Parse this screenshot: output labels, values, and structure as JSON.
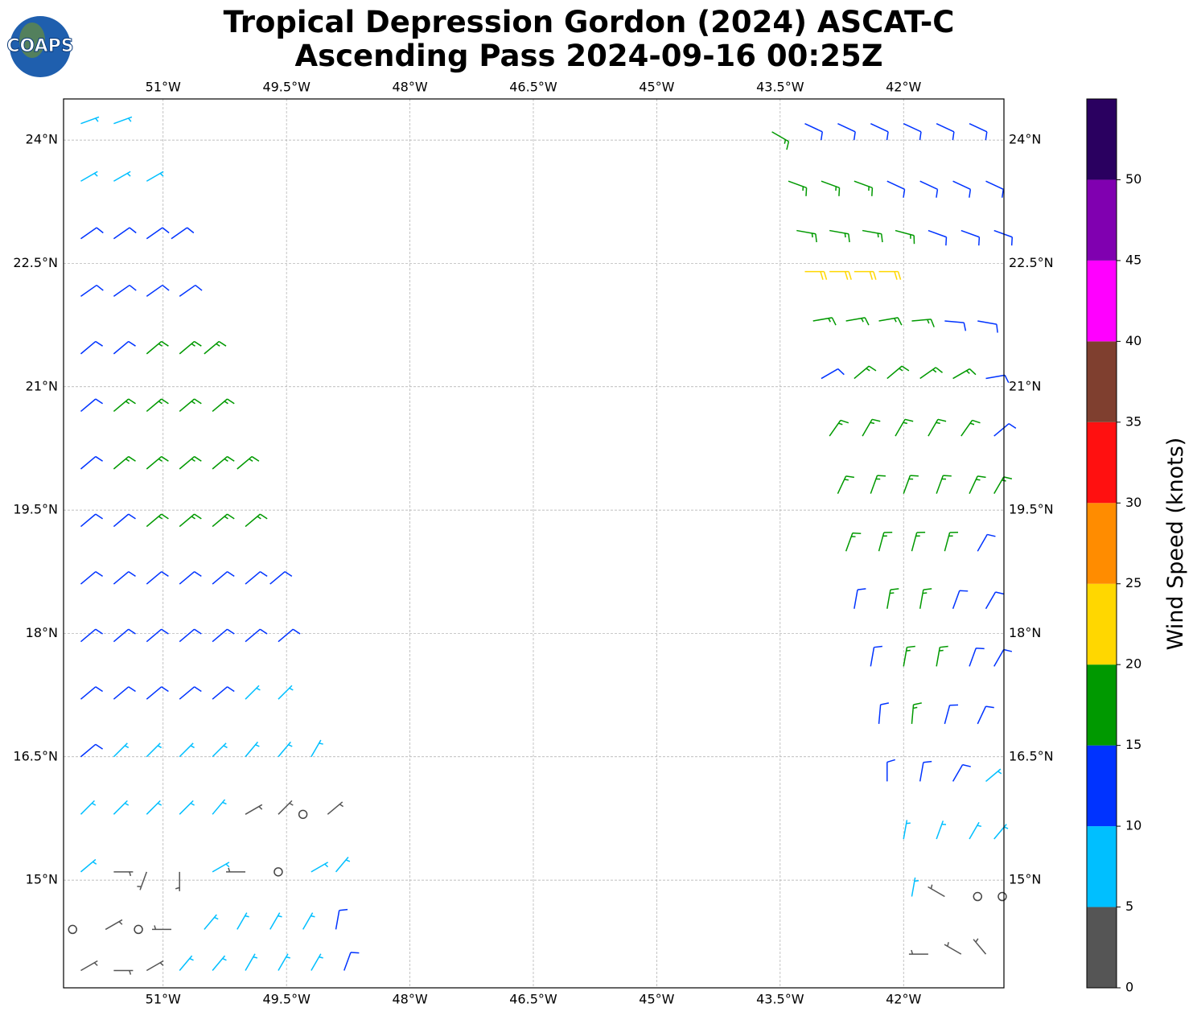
{
  "chart_data": {
    "type": "barbs",
    "logo_text": "COAPS",
    "title": "Tropical Depression Gordon (2024) ASCAT-C",
    "subtitle": "Ascending Pass 2024-09-16 00:25Z",
    "xlim": [
      -52.21,
      -40.78
    ],
    "ylim": [
      13.69,
      24.5
    ],
    "xticks": [
      {
        "value": -51,
        "label": "51°W"
      },
      {
        "value": -49.5,
        "label": "49.5°W"
      },
      {
        "value": -48,
        "label": "48°W"
      },
      {
        "value": -46.5,
        "label": "46.5°W"
      },
      {
        "value": -45,
        "label": "45°W"
      },
      {
        "value": -43.5,
        "label": "43.5°W"
      },
      {
        "value": -42,
        "label": "42°W"
      }
    ],
    "yticks": [
      {
        "value": 15,
        "label": "15°N"
      },
      {
        "value": 16.5,
        "label": "16.5°N"
      },
      {
        "value": 18,
        "label": "18°N"
      },
      {
        "value": 19.5,
        "label": "19.5°N"
      },
      {
        "value": 21,
        "label": "21°N"
      },
      {
        "value": 22.5,
        "label": "22.5°N"
      },
      {
        "value": 24,
        "label": "24°N"
      }
    ],
    "grid": true,
    "colorbar": {
      "label": "Wind Speed (knots)",
      "bounds": [
        0,
        5,
        10,
        15,
        20,
        25,
        30,
        35,
        40,
        45,
        50,
        55
      ],
      "colors": [
        "#555555",
        "#00bfff",
        "#0033ff",
        "#009900",
        "#ffd700",
        "#ff8c00",
        "#ff1010",
        "#7f3f2f",
        "#ff00ff",
        "#8000b0",
        "#2a0060"
      ],
      "ticks": [
        0,
        5,
        10,
        15,
        20,
        25,
        30,
        35,
        40,
        45,
        50
      ]
    },
    "barbs": [
      [
        -52.0,
        24.2,
        7,
        70
      ],
      [
        -51.6,
        24.2,
        7,
        70
      ],
      [
        -52.0,
        23.5,
        7,
        60
      ],
      [
        -51.6,
        23.5,
        7,
        60
      ],
      [
        -51.2,
        23.5,
        7,
        60
      ],
      [
        -52.0,
        22.8,
        12,
        55
      ],
      [
        -51.6,
        22.8,
        12,
        55
      ],
      [
        -51.2,
        22.8,
        12,
        55
      ],
      [
        -50.9,
        22.8,
        12,
        55
      ],
      [
        -52.0,
        22.1,
        12,
        55
      ],
      [
        -51.6,
        22.1,
        12,
        55
      ],
      [
        -51.2,
        22.1,
        12,
        55
      ],
      [
        -50.8,
        22.1,
        12,
        55
      ],
      [
        -52.0,
        21.4,
        12,
        50
      ],
      [
        -51.6,
        21.4,
        12,
        50
      ],
      [
        -51.2,
        21.4,
        17,
        50
      ],
      [
        -50.8,
        21.4,
        17,
        50
      ],
      [
        -50.5,
        21.4,
        17,
        50
      ],
      [
        -52.0,
        20.7,
        12,
        50
      ],
      [
        -51.6,
        20.7,
        17,
        50
      ],
      [
        -51.2,
        20.7,
        17,
        50
      ],
      [
        -50.8,
        20.7,
        17,
        50
      ],
      [
        -50.4,
        20.7,
        17,
        50
      ],
      [
        -52.0,
        20.0,
        12,
        50
      ],
      [
        -51.6,
        20.0,
        17,
        50
      ],
      [
        -51.2,
        20.0,
        17,
        50
      ],
      [
        -50.8,
        20.0,
        17,
        50
      ],
      [
        -50.4,
        20.0,
        17,
        50
      ],
      [
        -50.1,
        20.0,
        17,
        50
      ],
      [
        -52.0,
        19.3,
        12,
        50
      ],
      [
        -51.6,
        19.3,
        12,
        50
      ],
      [
        -51.2,
        19.3,
        17,
        50
      ],
      [
        -50.8,
        19.3,
        17,
        50
      ],
      [
        -50.4,
        19.3,
        17,
        50
      ],
      [
        -50.0,
        19.3,
        17,
        50
      ],
      [
        -52.0,
        18.6,
        12,
        50
      ],
      [
        -51.6,
        18.6,
        12,
        50
      ],
      [
        -51.2,
        18.6,
        12,
        50
      ],
      [
        -50.8,
        18.6,
        12,
        50
      ],
      [
        -50.4,
        18.6,
        12,
        50
      ],
      [
        -50.0,
        18.6,
        12,
        50
      ],
      [
        -49.7,
        18.6,
        12,
        50
      ],
      [
        -52.0,
        17.9,
        12,
        50
      ],
      [
        -51.6,
        17.9,
        12,
        50
      ],
      [
        -51.2,
        17.9,
        12,
        50
      ],
      [
        -50.8,
        17.9,
        12,
        50
      ],
      [
        -50.4,
        17.9,
        12,
        50
      ],
      [
        -50.0,
        17.9,
        12,
        50
      ],
      [
        -49.6,
        17.9,
        12,
        50
      ],
      [
        -52.0,
        17.2,
        12,
        50
      ],
      [
        -51.6,
        17.2,
        12,
        50
      ],
      [
        -51.2,
        17.2,
        12,
        50
      ],
      [
        -50.8,
        17.2,
        12,
        50
      ],
      [
        -50.4,
        17.2,
        12,
        50
      ],
      [
        -50.0,
        17.2,
        7,
        45
      ],
      [
        -49.6,
        17.2,
        7,
        45
      ],
      [
        -52.0,
        16.5,
        12,
        50
      ],
      [
        -51.6,
        16.5,
        7,
        45
      ],
      [
        -51.2,
        16.5,
        7,
        45
      ],
      [
        -50.8,
        16.5,
        7,
        45
      ],
      [
        -50.4,
        16.5,
        7,
        45
      ],
      [
        -50.0,
        16.5,
        7,
        40
      ],
      [
        -49.6,
        16.5,
        7,
        40
      ],
      [
        -49.2,
        16.5,
        7,
        30
      ],
      [
        -52.0,
        15.8,
        7,
        45
      ],
      [
        -51.6,
        15.8,
        7,
        45
      ],
      [
        -51.2,
        15.8,
        7,
        45
      ],
      [
        -50.8,
        15.8,
        7,
        45
      ],
      [
        -50.4,
        15.8,
        7,
        40
      ],
      [
        -50.0,
        15.8,
        3,
        60
      ],
      [
        -49.6,
        15.8,
        3,
        45
      ],
      [
        -49.3,
        15.8,
        1,
        0
      ],
      [
        -49.0,
        15.8,
        3,
        50
      ],
      [
        -52.0,
        15.1,
        7,
        50
      ],
      [
        -51.6,
        15.1,
        3,
        90
      ],
      [
        -51.2,
        15.1,
        3,
        200
      ],
      [
        -50.8,
        15.1,
        3,
        180
      ],
      [
        -50.4,
        15.1,
        7,
        60
      ],
      [
        -50.0,
        15.1,
        3,
        270
      ],
      [
        -49.6,
        15.1,
        1,
        0
      ],
      [
        -49.2,
        15.1,
        7,
        60
      ],
      [
        -48.9,
        15.1,
        7,
        40
      ],
      [
        -52.1,
        14.4,
        1,
        0
      ],
      [
        -51.7,
        14.4,
        3,
        60
      ],
      [
        -51.3,
        14.4,
        1,
        0
      ],
      [
        -50.9,
        14.4,
        3,
        270
      ],
      [
        -50.5,
        14.4,
        7,
        40
      ],
      [
        -50.1,
        14.4,
        7,
        30
      ],
      [
        -49.7,
        14.4,
        7,
        30
      ],
      [
        -49.3,
        14.4,
        7,
        30
      ],
      [
        -48.9,
        14.4,
        12,
        10
      ],
      [
        -52.0,
        13.9,
        3,
        60
      ],
      [
        -51.6,
        13.9,
        3,
        90
      ],
      [
        -51.2,
        13.9,
        3,
        60
      ],
      [
        -50.8,
        13.9,
        7,
        40
      ],
      [
        -50.4,
        13.9,
        7,
        40
      ],
      [
        -50.0,
        13.9,
        7,
        30
      ],
      [
        -49.6,
        13.9,
        7,
        30
      ],
      [
        -49.2,
        13.9,
        7,
        30
      ],
      [
        -48.8,
        13.9,
        12,
        20
      ],
      [
        -43.6,
        24.1,
        17,
        120
      ],
      [
        -43.2,
        24.2,
        12,
        115
      ],
      [
        -42.8,
        24.2,
        12,
        115
      ],
      [
        -42.4,
        24.2,
        12,
        115
      ],
      [
        -42.0,
        24.2,
        12,
        115
      ],
      [
        -41.6,
        24.2,
        12,
        115
      ],
      [
        -41.2,
        24.2,
        12,
        115
      ],
      [
        -43.4,
        23.5,
        17,
        110
      ],
      [
        -43.0,
        23.5,
        17,
        110
      ],
      [
        -42.6,
        23.5,
        17,
        110
      ],
      [
        -42.2,
        23.5,
        12,
        115
      ],
      [
        -41.8,
        23.5,
        12,
        115
      ],
      [
        -41.4,
        23.5,
        12,
        115
      ],
      [
        -41.0,
        23.5,
        12,
        115
      ],
      [
        -43.3,
        22.9,
        17,
        100
      ],
      [
        -42.9,
        22.9,
        17,
        100
      ],
      [
        -42.5,
        22.9,
        17,
        100
      ],
      [
        -42.1,
        22.9,
        17,
        105
      ],
      [
        -41.7,
        22.9,
        12,
        110
      ],
      [
        -41.3,
        22.9,
        12,
        110
      ],
      [
        -40.9,
        22.9,
        12,
        110
      ],
      [
        -43.2,
        22.4,
        21,
        90
      ],
      [
        -42.9,
        22.4,
        21,
        90
      ],
      [
        -42.6,
        22.4,
        21,
        90
      ],
      [
        -42.3,
        22.4,
        21,
        90
      ],
      [
        -43.1,
        21.8,
        17,
        80
      ],
      [
        -42.7,
        21.8,
        17,
        80
      ],
      [
        -42.3,
        21.8,
        17,
        80
      ],
      [
        -41.9,
        21.8,
        17,
        85
      ],
      [
        -41.5,
        21.8,
        12,
        95
      ],
      [
        -41.1,
        21.8,
        12,
        100
      ],
      [
        -43.0,
        21.1,
        12,
        60
      ],
      [
        -42.6,
        21.1,
        17,
        50
      ],
      [
        -42.2,
        21.1,
        17,
        50
      ],
      [
        -41.8,
        21.1,
        17,
        55
      ],
      [
        -41.4,
        21.1,
        17,
        60
      ],
      [
        -41.0,
        21.1,
        12,
        80
      ],
      [
        -42.9,
        20.4,
        17,
        35
      ],
      [
        -42.5,
        20.4,
        17,
        30
      ],
      [
        -42.1,
        20.4,
        17,
        30
      ],
      [
        -41.7,
        20.4,
        17,
        30
      ],
      [
        -41.3,
        20.4,
        17,
        35
      ],
      [
        -40.9,
        20.4,
        12,
        50
      ],
      [
        -42.8,
        19.7,
        17,
        25
      ],
      [
        -42.4,
        19.7,
        17,
        20
      ],
      [
        -42.0,
        19.7,
        17,
        20
      ],
      [
        -41.6,
        19.7,
        17,
        20
      ],
      [
        -41.2,
        19.7,
        17,
        25
      ],
      [
        -40.9,
        19.7,
        17,
        30
      ],
      [
        -42.7,
        19.0,
        17,
        20
      ],
      [
        -42.3,
        19.0,
        17,
        15
      ],
      [
        -41.9,
        19.0,
        17,
        15
      ],
      [
        -41.5,
        19.0,
        17,
        15
      ],
      [
        -41.1,
        19.0,
        12,
        30
      ],
      [
        -42.6,
        18.3,
        12,
        10
      ],
      [
        -42.2,
        18.3,
        17,
        10
      ],
      [
        -41.8,
        18.3,
        17,
        10
      ],
      [
        -41.4,
        18.3,
        12,
        20
      ],
      [
        -41.0,
        18.3,
        12,
        30
      ],
      [
        -42.4,
        17.6,
        12,
        10
      ],
      [
        -42.0,
        17.6,
        17,
        10
      ],
      [
        -41.6,
        17.6,
        17,
        10
      ],
      [
        -41.2,
        17.6,
        12,
        20
      ],
      [
        -40.9,
        17.6,
        12,
        30
      ],
      [
        -42.3,
        16.9,
        12,
        5
      ],
      [
        -41.9,
        16.9,
        17,
        5
      ],
      [
        -41.5,
        16.9,
        12,
        15
      ],
      [
        -41.1,
        16.9,
        12,
        25
      ],
      [
        -42.2,
        16.2,
        12,
        0
      ],
      [
        -41.8,
        16.2,
        12,
        10
      ],
      [
        -41.4,
        16.2,
        12,
        30
      ],
      [
        -41.0,
        16.2,
        7,
        50
      ],
      [
        -42.0,
        15.5,
        7,
        10
      ],
      [
        -41.6,
        15.5,
        7,
        20
      ],
      [
        -41.2,
        15.5,
        7,
        30
      ],
      [
        -40.9,
        15.5,
        7,
        40
      ],
      [
        -41.9,
        14.8,
        7,
        10
      ],
      [
        -41.5,
        14.8,
        3,
        300
      ],
      [
        -41.1,
        14.8,
        1,
        0
      ],
      [
        -40.8,
        14.8,
        1,
        0
      ],
      [
        -41.7,
        14.1,
        3,
        270
      ],
      [
        -41.3,
        14.1,
        3,
        300
      ],
      [
        -41.0,
        14.1,
        3,
        320
      ]
    ]
  }
}
